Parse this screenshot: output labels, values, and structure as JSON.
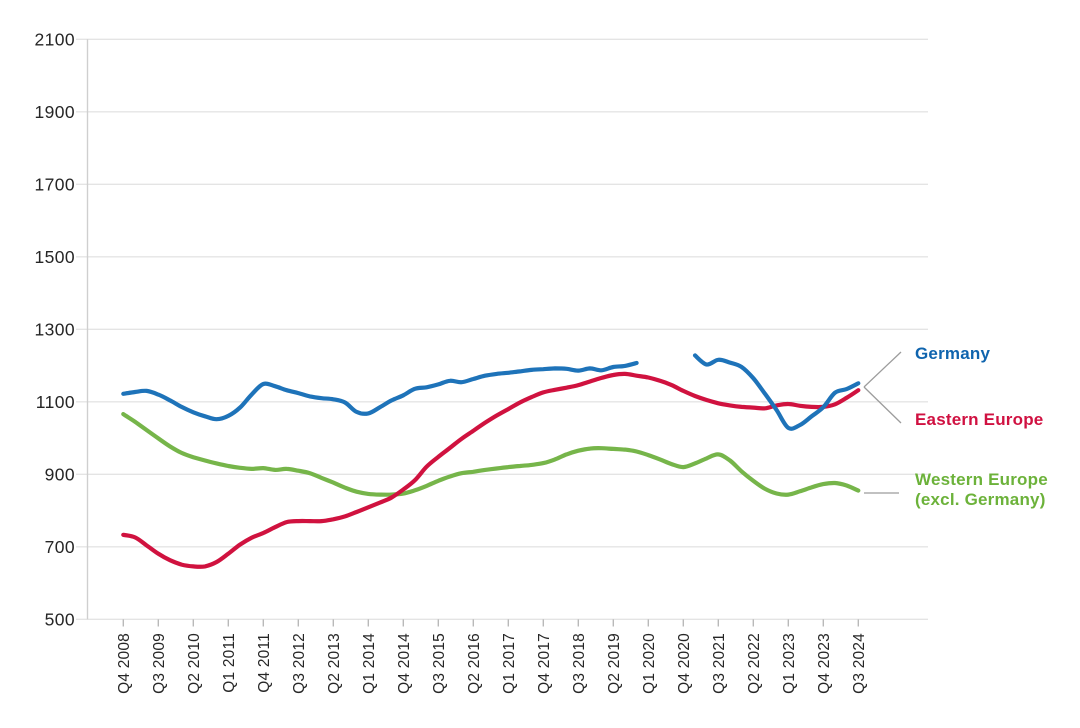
{
  "chart_data": {
    "type": "line",
    "title": "",
    "grid": true,
    "legend_position": "right",
    "ylim": [
      500,
      2100
    ],
    "y_ticks": [
      2100,
      1900,
      1700,
      1500,
      1300,
      1100,
      900,
      700,
      500
    ],
    "x_label_every": 3,
    "x_tick_labels": [
      "Q4 2008",
      "Q3 2009",
      "Q2 2010",
      "Q1 2011",
      "Q4 2011",
      "Q3 2012",
      "Q2 2013",
      "Q1 2014",
      "Q4 2014",
      "Q3 2015",
      "Q2 2016",
      "Q1 2017",
      "Q4 2017",
      "Q3 2018",
      "Q2 2019",
      "Q1 2020",
      "Q4 2020",
      "Q3 2021",
      "Q2 2022",
      "Q1 2023",
      "Q4 2023",
      "Q3 2024"
    ],
    "x": [
      "Q4 2008",
      "Q1 2009",
      "Q2 2009",
      "Q3 2009",
      "Q4 2009",
      "Q1 2010",
      "Q2 2010",
      "Q3 2010",
      "Q4 2010",
      "Q1 2011",
      "Q2 2011",
      "Q3 2011",
      "Q4 2011",
      "Q1 2012",
      "Q2 2012",
      "Q3 2012",
      "Q4 2012",
      "Q1 2013",
      "Q2 2013",
      "Q3 2013",
      "Q4 2013",
      "Q1 2014",
      "Q2 2014",
      "Q3 2014",
      "Q4 2014",
      "Q1 2015",
      "Q2 2015",
      "Q3 2015",
      "Q4 2015",
      "Q1 2016",
      "Q2 2016",
      "Q3 2016",
      "Q4 2016",
      "Q1 2017",
      "Q2 2017",
      "Q3 2017",
      "Q4 2017",
      "Q1 2018",
      "Q2 2018",
      "Q3 2018",
      "Q4 2018",
      "Q1 2019",
      "Q2 2019",
      "Q3 2019",
      "Q4 2019",
      "Q1 2020",
      "Q2 2020",
      "Q3 2020",
      "Q4 2020",
      "Q1 2021",
      "Q2 2021",
      "Q3 2021",
      "Q4 2021",
      "Q1 2022",
      "Q2 2022",
      "Q3 2022",
      "Q4 2022",
      "Q1 2023",
      "Q2 2023",
      "Q3 2023",
      "Q4 2023",
      "Q1 2024",
      "Q2 2024",
      "Q3 2024"
    ],
    "series": [
      {
        "name": "Germany",
        "color": "#1e73b9",
        "label_color": "#0f64ae",
        "values": [
          1122,
          1127,
          1130,
          1120,
          1104,
          1086,
          1071,
          1060,
          1052,
          1061,
          1084,
          1120,
          1149,
          1143,
          1132,
          1124,
          1115,
          1110,
          1107,
          1098,
          1072,
          1068,
          1085,
          1104,
          1118,
          1136,
          1140,
          1148,
          1158,
          1154,
          1163,
          1172,
          1177,
          1180,
          1184,
          1188,
          1190,
          1192,
          1191,
          1186,
          1192,
          1187,
          1196,
          1199,
          1207,
          null,
          null,
          null,
          null,
          1228,
          1203,
          1216,
          1208,
          1196,
          1165,
          1122,
          1077,
          1028,
          1036,
          1060,
          1085,
          1125,
          1135,
          1151
        ]
      },
      {
        "name": "Eastern Europe",
        "color": "#d0123f",
        "label_color": "#d01141",
        "values": [
          733,
          726,
          704,
          681,
          663,
          651,
          646,
          646,
          658,
          681,
          706,
          725,
          738,
          754,
          768,
          771,
          771,
          771,
          776,
          784,
          796,
          809,
          822,
          836,
          858,
          884,
          921,
          948,
          973,
          998,
          1020,
          1042,
          1062,
          1080,
          1098,
          1113,
          1126,
          1133,
          1139,
          1146,
          1156,
          1166,
          1174,
          1177,
          1172,
          1167,
          1158,
          1146,
          1130,
          1116,
          1105,
          1096,
          1090,
          1086,
          1084,
          1082,
          1090,
          1094,
          1089,
          1086,
          1086,
          1093,
          1111,
          1132
        ]
      },
      {
        "name": "Western Europe (excl. Germany)",
        "color": "#76b54a",
        "label_color": "#6cb23a",
        "values": [
          1066,
          1045,
          1022,
          999,
          977,
          959,
          947,
          938,
          930,
          923,
          918,
          915,
          917,
          912,
          915,
          910,
          903,
          890,
          877,
          863,
          852,
          846,
          844,
          844,
          847,
          856,
          868,
          882,
          894,
          903,
          907,
          912,
          916,
          920,
          923,
          926,
          931,
          941,
          955,
          965,
          971,
          972,
          970,
          968,
          963,
          953,
          941,
          928,
          920,
          930,
          944,
          955,
          938,
          908,
          882,
          860,
          847,
          844,
          853,
          864,
          873,
          876,
          869,
          855
        ]
      }
    ],
    "style": {
      "grid_color": "#e4e4e4",
      "axis_color": "#cfcfcf",
      "tick_color": "#b9b9b9",
      "tick_label_color": "#262626",
      "leader_line_color": "#9c9c9c",
      "background": "#ffffff"
    }
  }
}
